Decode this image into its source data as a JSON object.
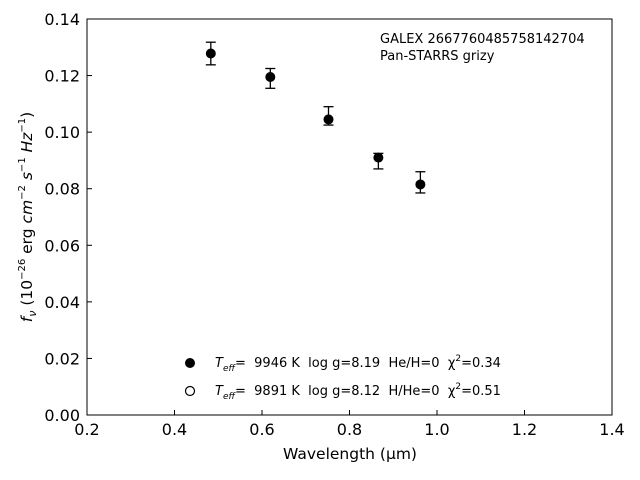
{
  "chart_data": {
    "type": "scatter",
    "xlabel": "Wavelength (μm)",
    "ylabel": "f_ν (10^−26 erg cm^−2 s^−1 Hz^−1)",
    "xlim": [
      0.2,
      1.4
    ],
    "ylim": [
      0.0,
      0.14
    ],
    "xticks": [
      0.2,
      0.4,
      0.6,
      0.8,
      1.0,
      1.2,
      1.4
    ],
    "yticks": [
      0.0,
      0.02,
      0.04,
      0.06,
      0.08,
      0.1,
      0.12,
      0.14
    ],
    "xtick_labels": [
      "0.2",
      "0.4",
      "0.6",
      "0.8",
      "1.0",
      "1.2",
      "1.4"
    ],
    "ytick_labels": [
      "0.00",
      "0.02",
      "0.04",
      "0.06",
      "0.08",
      "0.10",
      "0.12",
      "0.14"
    ],
    "grid": false,
    "annotation": [
      "GALEX 2667760485758142704",
      "Pan-STARRS grizy"
    ],
    "series": [
      {
        "marker": "filled-circle",
        "color": "#000000",
        "points": [
          {
            "x": 0.483,
            "y": 0.1278,
            "y_err_low": 0.004,
            "y_err_high": 0.004
          },
          {
            "x": 0.619,
            "y": 0.1195,
            "y_err_low": 0.004,
            "y_err_high": 0.003
          },
          {
            "x": 0.752,
            "y": 0.1045,
            "y_err_low": 0.002,
            "y_err_high": 0.0045
          },
          {
            "x": 0.866,
            "y": 0.091,
            "y_err_low": 0.004,
            "y_err_high": 0.0015
          },
          {
            "x": 0.962,
            "y": 0.0815,
            "y_err_low": 0.003,
            "y_err_high": 0.0045
          }
        ]
      }
    ],
    "legend": {
      "placement": "lower-center",
      "entries": [
        {
          "marker": "filled-circle",
          "teff_label": "T",
          "teff_sub": "eff",
          "text": "=  9946 K  log g=8.19  He/H=0  χ",
          "chi_sup": "2",
          "tail": "=0.34"
        },
        {
          "marker": "open-circle",
          "teff_label": "T",
          "teff_sub": "eff",
          "text": "=  9891 K  log g=8.12  H/He=0  χ",
          "chi_sup": "2",
          "tail": "=0.51"
        }
      ]
    }
  }
}
